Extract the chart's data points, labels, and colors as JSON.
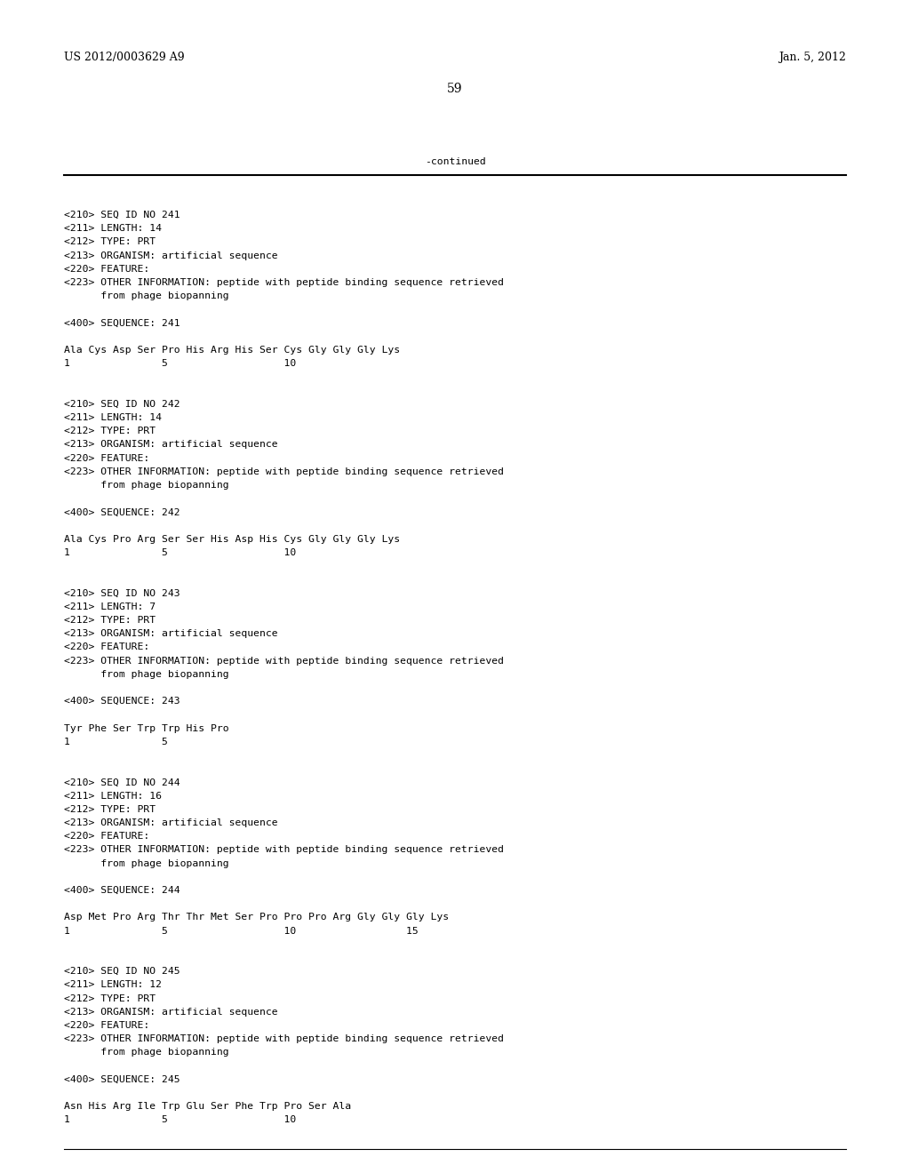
{
  "background_color": "#ffffff",
  "page_number": "59",
  "top_left": "US 2012/0003629 A9",
  "top_right": "Jan. 5, 2012",
  "continued_label": "-continued",
  "header_font_size": 9.0,
  "page_num_font_size": 10.0,
  "mono_font_size": 8.2,
  "content": [
    "<210> SEQ ID NO 241",
    "<211> LENGTH: 14",
    "<212> TYPE: PRT",
    "<213> ORGANISM: artificial sequence",
    "<220> FEATURE:",
    "<223> OTHER INFORMATION: peptide with peptide binding sequence retrieved",
    "      from phage biopanning",
    "",
    "<400> SEQUENCE: 241",
    "",
    "Ala Cys Asp Ser Pro His Arg His Ser Cys Gly Gly Gly Lys",
    "1               5                   10",
    "",
    "",
    "<210> SEQ ID NO 242",
    "<211> LENGTH: 14",
    "<212> TYPE: PRT",
    "<213> ORGANISM: artificial sequence",
    "<220> FEATURE:",
    "<223> OTHER INFORMATION: peptide with peptide binding sequence retrieved",
    "      from phage biopanning",
    "",
    "<400> SEQUENCE: 242",
    "",
    "Ala Cys Pro Arg Ser Ser His Asp His Cys Gly Gly Gly Lys",
    "1               5                   10",
    "",
    "",
    "<210> SEQ ID NO 243",
    "<211> LENGTH: 7",
    "<212> TYPE: PRT",
    "<213> ORGANISM: artificial sequence",
    "<220> FEATURE:",
    "<223> OTHER INFORMATION: peptide with peptide binding sequence retrieved",
    "      from phage biopanning",
    "",
    "<400> SEQUENCE: 243",
    "",
    "Tyr Phe Ser Trp Trp His Pro",
    "1               5",
    "",
    "",
    "<210> SEQ ID NO 244",
    "<211> LENGTH: 16",
    "<212> TYPE: PRT",
    "<213> ORGANISM: artificial sequence",
    "<220> FEATURE:",
    "<223> OTHER INFORMATION: peptide with peptide binding sequence retrieved",
    "      from phage biopanning",
    "",
    "<400> SEQUENCE: 244",
    "",
    "Asp Met Pro Arg Thr Thr Met Ser Pro Pro Pro Arg Gly Gly Gly Lys",
    "1               5                   10                  15",
    "",
    "",
    "<210> SEQ ID NO 245",
    "<211> LENGTH: 12",
    "<212> TYPE: PRT",
    "<213> ORGANISM: artificial sequence",
    "<220> FEATURE:",
    "<223> OTHER INFORMATION: peptide with peptide binding sequence retrieved",
    "      from phage biopanning",
    "",
    "<400> SEQUENCE: 245",
    "",
    "Asn His Arg Ile Trp Glu Ser Phe Trp Pro Ser Ala",
    "1               5                   10"
  ]
}
